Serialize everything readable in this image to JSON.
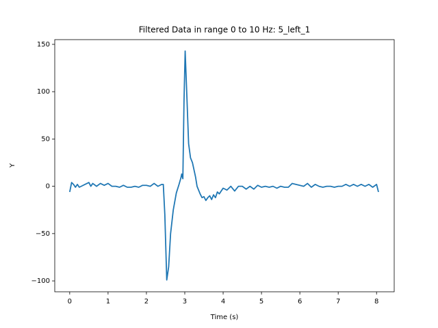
{
  "chart_data": {
    "type": "line",
    "title": "Filtered Data in range 0 to 10 Hz: 5_left_1",
    "xlabel": "Time (s)",
    "ylabel": "Y",
    "color": "#1f77b4",
    "x": [
      0,
      0.05,
      0.1,
      0.15,
      0.2,
      0.25,
      0.3,
      0.4,
      0.5,
      0.55,
      0.6,
      0.7,
      0.8,
      0.9,
      1.0,
      1.1,
      1.2,
      1.3,
      1.4,
      1.5,
      1.6,
      1.7,
      1.8,
      1.9,
      2.0,
      2.1,
      2.2,
      2.3,
      2.4,
      2.44,
      2.48,
      2.53,
      2.58,
      2.63,
      2.7,
      2.78,
      2.85,
      2.9,
      2.92,
      2.95,
      2.98,
      3.01,
      3.05,
      3.1,
      3.15,
      3.2,
      3.28,
      3.32,
      3.4,
      3.45,
      3.5,
      3.55,
      3.6,
      3.65,
      3.7,
      3.75,
      3.8,
      3.85,
      3.9,
      4.0,
      4.1,
      4.2,
      4.3,
      4.4,
      4.5,
      4.6,
      4.7,
      4.8,
      4.9,
      5.0,
      5.1,
      5.2,
      5.3,
      5.4,
      5.5,
      5.6,
      5.7,
      5.8,
      5.9,
      6.0,
      6.1,
      6.2,
      6.3,
      6.4,
      6.5,
      6.6,
      6.7,
      6.8,
      6.9,
      7.0,
      7.1,
      7.2,
      7.3,
      7.4,
      7.5,
      7.6,
      7.7,
      7.8,
      7.9,
      8.0,
      8.05
    ],
    "values": [
      -6,
      4,
      2,
      -1,
      2,
      -1,
      0,
      2,
      4,
      0,
      3,
      0,
      3,
      1,
      3,
      0,
      0,
      -1,
      1,
      -1,
      -1,
      0,
      -1,
      1,
      1,
      0,
      3,
      0,
      2,
      2,
      -30,
      -99,
      -85,
      -50,
      -25,
      -7,
      2,
      9,
      13,
      8,
      90,
      143,
      100,
      45,
      30,
      25,
      10,
      0,
      -8,
      -12,
      -11,
      -15,
      -12,
      -10,
      -14,
      -9,
      -12,
      -6,
      -8,
      -2,
      -4,
      0,
      -5,
      0,
      0,
      -3,
      0,
      -3,
      1,
      -1,
      0,
      -1,
      0,
      -2,
      0,
      -1,
      -1,
      3,
      2,
      1,
      0,
      3,
      -1,
      2,
      0,
      -1,
      0,
      0,
      -1,
      0,
      0,
      2,
      0,
      2,
      0,
      2,
      0,
      2,
      -1,
      2,
      -6
    ],
    "xlim": [
      -0.39,
      8.46
    ],
    "ylim": [
      -111.5,
      155
    ],
    "xticks": [
      0,
      1,
      2,
      3,
      4,
      5,
      6,
      7,
      8
    ],
    "yticks": [
      {
        "value": -100,
        "label": "−100"
      },
      {
        "value": -50,
        "label": "−50"
      },
      0,
      50,
      100,
      150
    ]
  }
}
